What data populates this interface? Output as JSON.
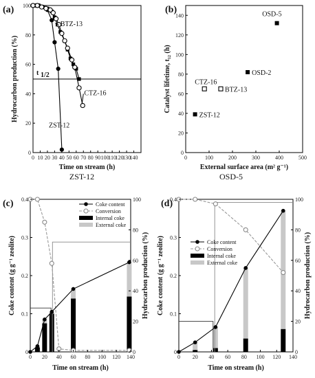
{
  "chart_data": [
    {
      "panel": "(a)",
      "type": "line",
      "xlabel": "Time on stream (h)",
      "ylabel": "Hydrocarbon production (%)",
      "xlim": [
        0,
        150
      ],
      "ylim": [
        0,
        100
      ],
      "xticks": [
        "0",
        "10",
        "20",
        "30",
        "40",
        "50",
        "60",
        "70",
        "80",
        "90",
        "100",
        "110",
        "120",
        "130",
        "140"
      ],
      "yticks": [
        "0",
        "20",
        "40",
        "60",
        "80",
        "100"
      ],
      "hline": {
        "y": 50,
        "label": "t",
        "sub": "1/2"
      },
      "series": [
        {
          "name": "ZST-12",
          "marker": "filled-circle",
          "x": [
            0,
            4,
            8,
            14,
            20,
            26,
            30,
            35,
            40
          ],
          "y": [
            100,
            100,
            100,
            99,
            97,
            90,
            75,
            57,
            2
          ]
        },
        {
          "name": "BTZ-13",
          "marker": "filled-square",
          "x": [
            2,
            8,
            14,
            20,
            26,
            30,
            34,
            38,
            44,
            48,
            52,
            56,
            60,
            64
          ],
          "y": [
            100,
            100,
            99,
            98,
            96,
            92,
            87,
            82,
            76,
            70,
            64,
            60,
            57,
            50
          ]
        },
        {
          "name": "CTZ-16",
          "marker": "open-circle",
          "x": [
            0,
            6,
            12,
            18,
            24,
            28,
            32,
            36,
            40,
            44,
            48,
            54,
            58,
            64,
            69
          ],
          "y": [
            100,
            100,
            99,
            98,
            97,
            95,
            91,
            87,
            81,
            76,
            71,
            63,
            58,
            44,
            32
          ]
        }
      ],
      "labels": [
        {
          "text": "BTZ-13",
          "x": 38,
          "y": 86
        },
        {
          "text": "CTZ-16",
          "x": 71,
          "y": 39
        },
        {
          "text": "ZST-12",
          "x": 22,
          "y": 17
        }
      ]
    },
    {
      "panel": "(b)",
      "type": "scatter",
      "xlabel": "External surface area (m² g⁻¹)",
      "ylabel": "Catalyst lifetime, t₁₂ (h)",
      "xlim": [
        0,
        500
      ],
      "ylim": [
        0,
        150
      ],
      "xticks": [
        "0",
        "100",
        "200",
        "300",
        "400",
        "500"
      ],
      "yticks": [
        "0",
        "20",
        "40",
        "60",
        "80",
        "100",
        "120",
        "140"
      ],
      "points": [
        {
          "name": "OSD-5",
          "x": 390,
          "y": 132,
          "marker": "filled-square"
        },
        {
          "name": "OSD-2",
          "x": 265,
          "y": 82,
          "marker": "filled-square"
        },
        {
          "name": "CTZ-16",
          "x": 80,
          "y": 65,
          "marker": "open-square"
        },
        {
          "name": "BTZ-13",
          "x": 150,
          "y": 65,
          "marker": "open-square"
        },
        {
          "name": "ZST-12",
          "x": 40,
          "y": 39,
          "marker": "filled-square"
        }
      ]
    },
    {
      "panel": "(c)",
      "title": "ZST-12",
      "type": "bar",
      "xlabel": "Time on stream (h)",
      "ylabel": "Coke content (g g⁻¹ zeolite)",
      "ylabel_right": "Hydrocarbon production (%)",
      "xlim": [
        0,
        140
      ],
      "ylim": [
        0,
        0.4
      ],
      "ylim_right": [
        0,
        100
      ],
      "xticks": [
        "0",
        "20",
        "40",
        "60",
        "80",
        "100",
        "120",
        "140"
      ],
      "yticks": [
        "0",
        "0.1",
        "0.2",
        "0.3",
        "0.4"
      ],
      "yticks_right": [
        "0",
        "20",
        "40",
        "60",
        "80",
        "100"
      ],
      "legend": [
        "Coke content",
        "Conversion",
        "Internal coke",
        "External coke"
      ],
      "coke": {
        "x": [
          0,
          10,
          20,
          30,
          60,
          138
        ],
        "y": [
          0,
          0.015,
          0.085,
          0.105,
          0.165,
          0.235
        ]
      },
      "internal": {
        "x": [
          10,
          20,
          30,
          60,
          138
        ],
        "y": [
          0.012,
          0.075,
          0.1,
          0.14,
          0.145
        ]
      },
      "external": {
        "x": [
          10,
          20,
          30,
          60,
          138
        ],
        "y": [
          0.003,
          0.01,
          0.005,
          0.025,
          0.09
        ]
      },
      "conversion": {
        "x": [
          0,
          10,
          20,
          30,
          40,
          60,
          138
        ],
        "y": [
          100,
          100,
          85,
          58,
          2,
          1,
          1
        ]
      },
      "step": {
        "t_half": 29,
        "y_half": 0.115,
        "right_level": 72
      }
    },
    {
      "panel": "(d)",
      "title": "OSD-5",
      "type": "bar",
      "xlabel": "Time on stream (h)",
      "ylabel": "Coke content (g g⁻¹ zeolite)",
      "ylabel_right": "Hydrocarbon production (%)",
      "xlim": [
        0,
        140
      ],
      "ylim": [
        0,
        0.4
      ],
      "ylim_right": [
        0,
        100
      ],
      "xticks": [
        "0",
        "20",
        "40",
        "60",
        "80",
        "100",
        "120",
        "140"
      ],
      "yticks": [
        "0",
        "0.1",
        "0.2",
        "0.3",
        "0.4"
      ],
      "yticks_right": [
        "0",
        "20",
        "40",
        "60",
        "80",
        "100"
      ],
      "legend": [
        "Coke content",
        "Conversion",
        "Internal coke",
        "External coke"
      ],
      "coke": {
        "x": [
          0,
          20,
          45,
          82,
          128
        ],
        "y": [
          0,
          0.025,
          0.065,
          0.22,
          0.37
        ]
      },
      "internal": {
        "x": [
          20,
          45,
          82,
          128
        ],
        "y": [
          0.005,
          0.01,
          0.035,
          0.06
        ]
      },
      "external": {
        "x": [
          20,
          45,
          82,
          128
        ],
        "y": [
          0.02,
          0.055,
          0.185,
          0.31
        ]
      },
      "conversion": {
        "x": [
          0,
          20,
          45,
          82,
          128
        ],
        "y": [
          100,
          100,
          97,
          80,
          52
        ]
      },
      "step": {
        "t_half": 42,
        "y_half": 0.08,
        "right_level": 98
      }
    }
  ]
}
